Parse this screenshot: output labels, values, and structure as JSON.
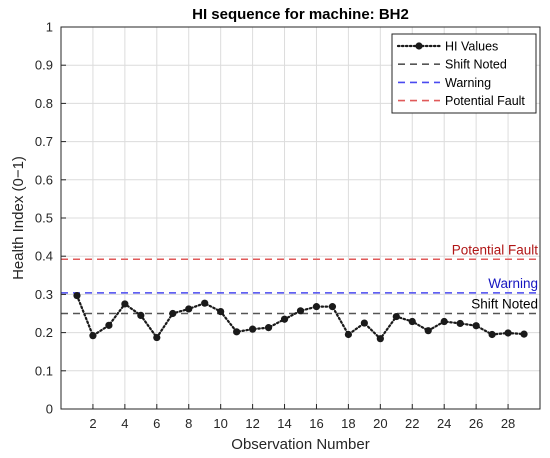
{
  "chart_data": {
    "type": "line",
    "title": "HI sequence for machine: BH2",
    "xlabel": "Observation Number",
    "ylabel": "Health Index (0−1)",
    "xlim": [
      0,
      30
    ],
    "ylim": [
      0,
      1
    ],
    "xticks": [
      2,
      4,
      6,
      8,
      10,
      12,
      14,
      16,
      18,
      20,
      22,
      24,
      26,
      28
    ],
    "yticks": [
      0,
      0.1,
      0.2,
      0.3,
      0.4,
      0.5,
      0.6,
      0.7,
      0.8,
      0.9,
      1
    ],
    "grid": true,
    "legend_position": "top-right",
    "series": [
      {
        "name": "HI Values",
        "color": "#1a1a1a",
        "style": "dotted-with-markers",
        "x": [
          1,
          2,
          3,
          4,
          5,
          6,
          7,
          8,
          9,
          10,
          11,
          12,
          13,
          14,
          15,
          16,
          17,
          18,
          19,
          20,
          21,
          22,
          23,
          24,
          25,
          26,
          27,
          28,
          29
        ],
        "y": [
          0.297,
          0.192,
          0.219,
          0.275,
          0.245,
          0.187,
          0.25,
          0.262,
          0.277,
          0.255,
          0.202,
          0.209,
          0.213,
          0.235,
          0.257,
          0.268,
          0.268,
          0.195,
          0.225,
          0.184,
          0.242,
          0.229,
          0.205,
          0.229,
          0.224,
          0.218,
          0.195,
          0.199,
          0.196
        ]
      }
    ],
    "reference_lines": [
      {
        "name": "Shift Noted",
        "label": "Shift Noted",
        "value": 0.25,
        "color": "#555555",
        "label_color": "#000000"
      },
      {
        "name": "Warning",
        "label": "Warning",
        "value": 0.304,
        "color": "#4a4af0",
        "label_color": "#1515c0"
      },
      {
        "name": "Potential Fault",
        "label": "Potential Fault",
        "value": 0.392,
        "color": "#e05a5a",
        "label_color": "#b01515"
      }
    ]
  }
}
